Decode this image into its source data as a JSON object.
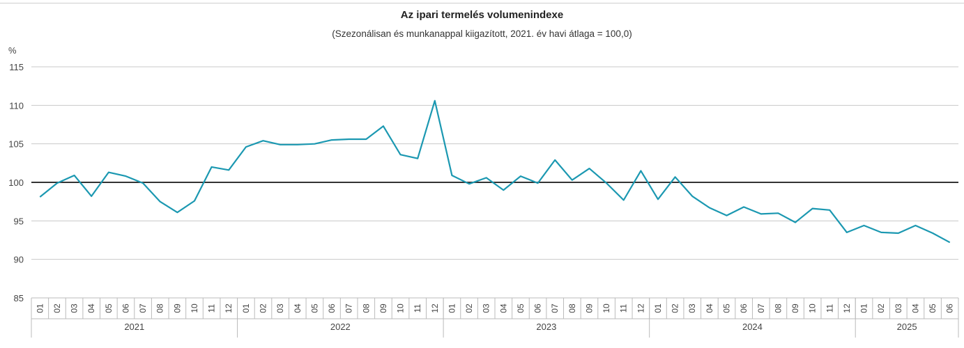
{
  "chart_data": {
    "type": "line",
    "title": "Az ipari termelés volumenindexe",
    "subtitle": "(Szezonálisan és munkanappal kiigazított, 2021. év havi átlaga = 100,0)",
    "ylabel": "%",
    "ylim": [
      85,
      115
    ],
    "yticks": [
      "85",
      "90",
      "95",
      "100",
      "105",
      "110",
      "115"
    ],
    "reference_line": 100,
    "grid": true,
    "line_color": "#1b98b1",
    "years": [
      {
        "label": "2021",
        "months": [
          "01",
          "02",
          "03",
          "04",
          "05",
          "06",
          "07",
          "08",
          "09",
          "10",
          "11",
          "12"
        ]
      },
      {
        "label": "2022",
        "months": [
          "01",
          "02",
          "03",
          "04",
          "05",
          "06",
          "07",
          "08",
          "09",
          "10",
          "11",
          "12"
        ]
      },
      {
        "label": "2023",
        "months": [
          "01",
          "02",
          "03",
          "04",
          "05",
          "06",
          "07",
          "08",
          "09",
          "10",
          "11",
          "12"
        ]
      },
      {
        "label": "2024",
        "months": [
          "01",
          "02",
          "03",
          "04",
          "05",
          "06",
          "07",
          "08",
          "09",
          "10",
          "11",
          "12"
        ]
      },
      {
        "label": "2025",
        "months": [
          "01",
          "02",
          "03",
          "04",
          "05",
          "06"
        ]
      }
    ],
    "values": [
      98.1,
      99.9,
      100.9,
      98.2,
      101.3,
      100.8,
      99.9,
      97.5,
      96.1,
      97.6,
      102.0,
      101.6,
      104.6,
      105.4,
      104.9,
      104.9,
      105.0,
      105.5,
      105.6,
      105.6,
      107.3,
      103.6,
      103.1,
      110.6,
      100.9,
      99.8,
      100.6,
      99.0,
      100.8,
      99.9,
      102.9,
      100.3,
      101.8,
      99.9,
      97.7,
      101.5,
      97.8,
      100.7,
      98.2,
      96.7,
      95.7,
      96.8,
      95.9,
      96.0,
      94.8,
      96.6,
      96.4,
      93.5,
      94.4,
      93.5,
      93.4,
      94.4,
      93.4,
      92.2
    ]
  }
}
